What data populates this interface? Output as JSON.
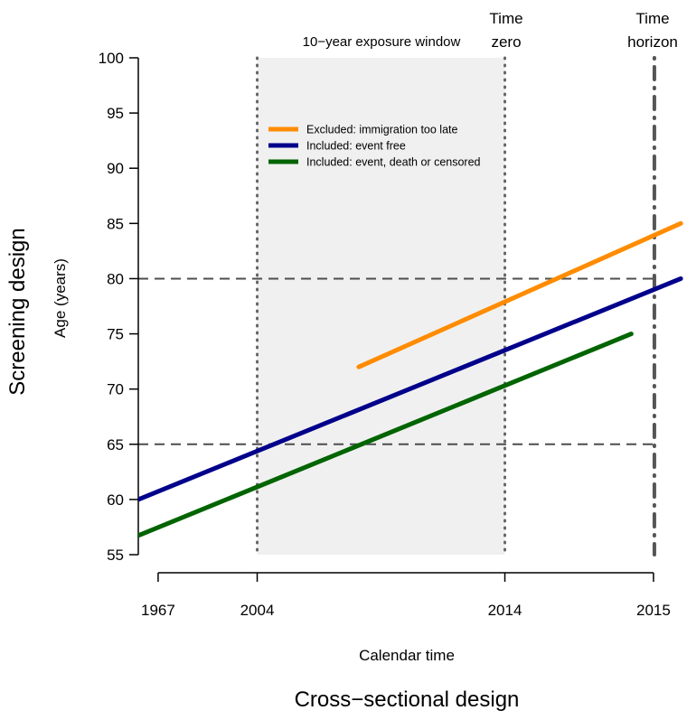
{
  "outer_labels": {
    "left": "Screening design",
    "bottom": "Cross−sectional design"
  },
  "annotations": {
    "exposure_window": "10−year exposure window",
    "time_zero_line1": "Time",
    "time_zero_line2": "zero",
    "time_horizon_line1": "Time",
    "time_horizon_line2": "horizon"
  },
  "chart_data": {
    "type": "line",
    "xlabel": "Calendar time",
    "ylabel": "Age (years)",
    "ylim": [
      55,
      100
    ],
    "y_ticks": [
      55,
      60,
      65,
      70,
      75,
      80,
      85,
      90,
      95,
      100
    ],
    "x_tick_labels": [
      "1967",
      "2004",
      "2014",
      "2015"
    ],
    "x_tick_positions": [
      0.08,
      0.48,
      1.48,
      2.08
    ],
    "xlim": [
      0,
      2.2
    ],
    "shaded_region": {
      "from": 0.48,
      "to": 1.48,
      "color": "#f0f0f0"
    },
    "reference_lines": {
      "vertical_dotted": [
        0.48,
        1.48
      ],
      "vertical_dashdot": [
        2.08
      ],
      "horizontal_dashed": [
        65,
        80
      ]
    },
    "legend_position": "top-left inside plot",
    "series": [
      {
        "name": "Excluded: immigration too late",
        "color": "#ff8c00",
        "x": [
          0.89,
          2.19
        ],
        "y": [
          72,
          85
        ]
      },
      {
        "name": "Included: event free",
        "color": "#00008b",
        "x": [
          0.0,
          2.19
        ],
        "y": [
          60,
          80
        ]
      },
      {
        "name": "Included: event, death or censored",
        "color": "#006400",
        "x": [
          -0.08,
          1.99
        ],
        "y": [
          56,
          75
        ]
      }
    ]
  }
}
